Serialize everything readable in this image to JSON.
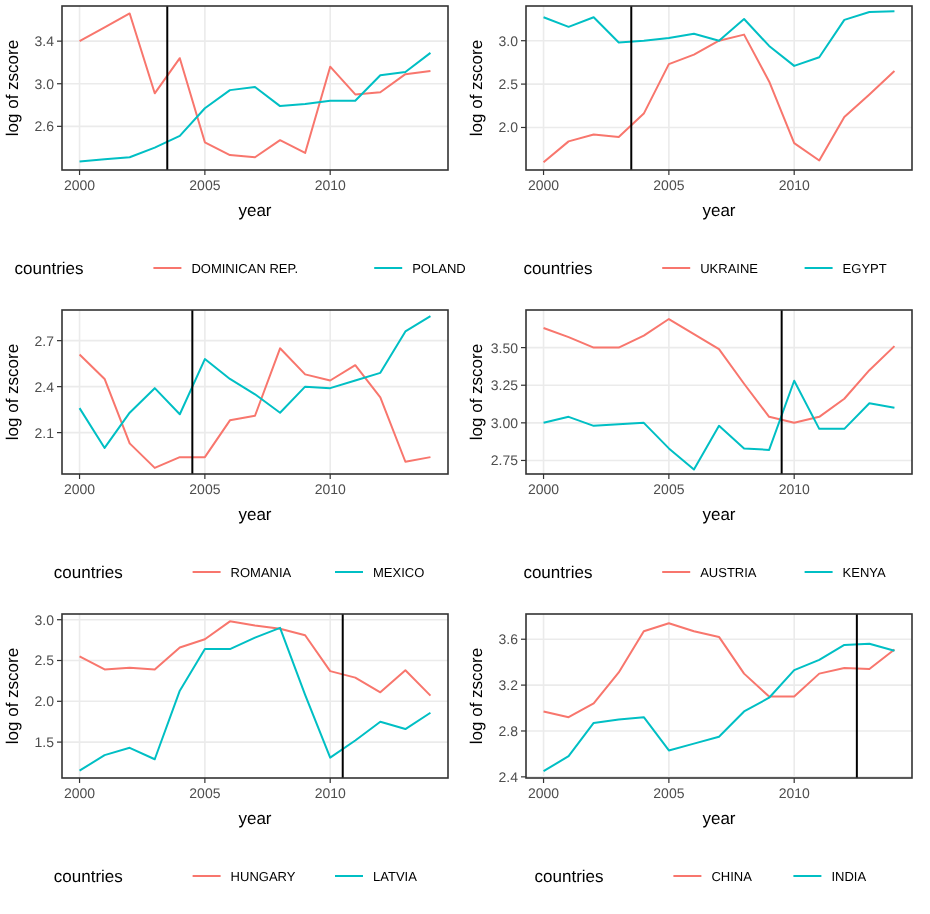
{
  "chart_data": [
    {
      "type": "line",
      "xlabel": "year",
      "ylabel": "log of zscore",
      "legend_title": "countries",
      "legend": "bottom",
      "grid": true,
      "x": [
        2000,
        2001,
        2002,
        2003,
        2004,
        2005,
        2006,
        2007,
        2008,
        2009,
        2010,
        2011,
        2012,
        2013,
        2014
      ],
      "xlim": [
        1999.3,
        2014.7
      ],
      "xticks": [
        2000,
        2005,
        2010
      ],
      "ylim": [
        2.19,
        3.73
      ],
      "yticks": [
        2.6,
        {
          "value": 3.0,
          "label": "3.0"
        },
        3.4
      ],
      "ref_lines": [
        {
          "axis": "x",
          "value": 2003.5,
          "color": "#000000"
        }
      ],
      "series": [
        {
          "name": "DOMINICAN REP.",
          "color": "#f8766d",
          "values": [
            3.4,
            3.53,
            3.66,
            2.91,
            3.24,
            2.45,
            2.33,
            2.31,
            2.47,
            2.35,
            3.16,
            2.9,
            2.92,
            3.09,
            3.12
          ]
        },
        {
          "name": "POLAND",
          "color": "#00bfc4",
          "values": [
            2.27,
            2.29,
            2.31,
            2.4,
            2.51,
            2.77,
            2.94,
            2.97,
            2.79,
            2.81,
            2.84,
            2.84,
            3.08,
            3.11,
            3.29
          ]
        }
      ]
    },
    {
      "type": "line",
      "xlabel": "year",
      "ylabel": "log of zscore",
      "legend_title": "countries",
      "legend": "bottom",
      "grid": true,
      "x": [
        2000,
        2001,
        2002,
        2003,
        2004,
        2005,
        2006,
        2007,
        2008,
        2009,
        2010,
        2011,
        2012,
        2013,
        2014
      ],
      "xlim": [
        1999.3,
        2014.7
      ],
      "xticks": [
        2000,
        2005,
        2010
      ],
      "ylim": [
        1.51,
        3.4
      ],
      "yticks": [
        {
          "value": 2.0,
          "label": "2.0"
        },
        2.5,
        {
          "value": 3.0,
          "label": "3.0"
        }
      ],
      "ref_lines": [
        {
          "axis": "x",
          "value": 2003.5,
          "color": "#000000"
        }
      ],
      "series": [
        {
          "name": "UKRAINE",
          "color": "#f8766d",
          "values": [
            1.6,
            1.84,
            1.92,
            1.89,
            2.16,
            2.73,
            2.84,
            3.0,
            3.07,
            2.53,
            1.82,
            1.62,
            2.12,
            2.38,
            2.65
          ]
        },
        {
          "name": "EGYPT",
          "color": "#00bfc4",
          "values": [
            3.27,
            3.16,
            3.27,
            2.98,
            3.0,
            3.03,
            3.08,
            3.0,
            3.25,
            2.94,
            2.71,
            2.81,
            3.24,
            3.33,
            3.34
          ]
        }
      ]
    },
    {
      "type": "line",
      "xlabel": "year",
      "ylabel": "log of zscore",
      "legend_title": "countries",
      "legend": "bottom",
      "grid": true,
      "x": [
        2000,
        2001,
        2002,
        2003,
        2004,
        2005,
        2006,
        2007,
        2008,
        2009,
        2010,
        2011,
        2012,
        2013,
        2014
      ],
      "xlim": [
        1999.3,
        2014.7
      ],
      "xticks": [
        2000,
        2005,
        2010
      ],
      "ylim": [
        1.83,
        2.9
      ],
      "yticks": [
        2.1,
        2.4,
        2.7
      ],
      "ref_lines": [
        {
          "axis": "x",
          "value": 2004.5,
          "color": "#000000"
        }
      ],
      "series": [
        {
          "name": "ROMANIA",
          "color": "#f8766d",
          "values": [
            2.61,
            2.45,
            2.03,
            1.87,
            1.94,
            1.94,
            2.18,
            2.21,
            2.65,
            2.48,
            2.44,
            2.54,
            2.33,
            1.91,
            1.94
          ]
        },
        {
          "name": "MEXICO",
          "color": "#00bfc4",
          "values": [
            2.26,
            2.0,
            2.23,
            2.39,
            2.22,
            2.58,
            2.45,
            2.35,
            2.23,
            2.4,
            2.39,
            2.44,
            2.49,
            2.76,
            2.86
          ]
        }
      ]
    },
    {
      "type": "line",
      "xlabel": "year",
      "ylabel": "log of zscore",
      "legend_title": "countries",
      "legend": "bottom",
      "grid": true,
      "x": [
        2000,
        2001,
        2002,
        2003,
        2004,
        2005,
        2006,
        2007,
        2008,
        2009,
        2010,
        2011,
        2012,
        2013,
        2014
      ],
      "xlim": [
        1999.3,
        2014.7
      ],
      "xticks": [
        2000,
        2005,
        2010
      ],
      "ylim": [
        2.66,
        3.75
      ],
      "yticks": [
        {
          "value": 2.75,
          "label": "2.75"
        },
        {
          "value": 3.0,
          "label": "3.00"
        },
        {
          "value": 3.25,
          "label": "3.25"
        },
        {
          "value": 3.5,
          "label": "3.50"
        }
      ],
      "ref_lines": [
        {
          "axis": "x",
          "value": 2009.5,
          "color": "#000000"
        }
      ],
      "series": [
        {
          "name": "AUSTRIA",
          "color": "#f8766d",
          "values": [
            3.63,
            3.57,
            3.5,
            3.5,
            3.58,
            3.69,
            3.59,
            3.49,
            3.26,
            3.04,
            3.0,
            3.04,
            3.16,
            3.35,
            3.51
          ]
        },
        {
          "name": "KENYA",
          "color": "#00bfc4",
          "values": [
            3.0,
            3.04,
            2.98,
            2.99,
            3.0,
            2.83,
            2.69,
            2.98,
            2.83,
            2.82,
            3.28,
            2.96,
            2.96,
            3.13,
            3.1
          ]
        }
      ]
    },
    {
      "type": "line",
      "xlabel": "year",
      "ylabel": "log of zscore",
      "legend_title": "countries",
      "legend": "bottom",
      "grid": true,
      "x": [
        2000,
        2001,
        2002,
        2003,
        2004,
        2005,
        2006,
        2007,
        2008,
        2009,
        2010,
        2011,
        2012,
        2013,
        2014
      ],
      "xlim": [
        1999.3,
        2014.7
      ],
      "xticks": [
        2000,
        2005,
        2010
      ],
      "ylim": [
        1.06,
        3.07
      ],
      "yticks": [
        1.5,
        {
          "value": 2.0,
          "label": "2.0"
        },
        2.5,
        {
          "value": 3.0,
          "label": "3.0"
        }
      ],
      "ref_lines": [
        {
          "axis": "x",
          "value": 2010.5,
          "color": "#000000"
        }
      ],
      "series": [
        {
          "name": "HUNGARY",
          "color": "#f8766d",
          "values": [
            2.55,
            2.39,
            2.41,
            2.39,
            2.66,
            2.76,
            2.98,
            2.93,
            2.89,
            2.81,
            2.37,
            2.29,
            2.11,
            2.38,
            2.07
          ]
        },
        {
          "name": "LATVIA",
          "color": "#00bfc4",
          "values": [
            1.15,
            1.34,
            1.43,
            1.29,
            2.13,
            2.64,
            2.64,
            2.78,
            2.9,
            2.08,
            1.31,
            1.52,
            1.75,
            1.66,
            1.86
          ]
        }
      ]
    },
    {
      "type": "line",
      "xlabel": "year",
      "ylabel": "log of zscore",
      "legend_title": "countries",
      "legend": "bottom",
      "grid": true,
      "x": [
        2000,
        2001,
        2002,
        2003,
        2004,
        2005,
        2006,
        2007,
        2008,
        2009,
        2010,
        2011,
        2012,
        2013,
        2014
      ],
      "xlim": [
        1999.3,
        2014.7
      ],
      "xticks": [
        2000,
        2005,
        2010
      ],
      "ylim": [
        2.39,
        3.82
      ],
      "yticks": [
        2.4,
        2.8,
        3.2,
        3.6
      ],
      "ref_lines": [
        {
          "axis": "x",
          "value": 2012.5,
          "color": "#000000"
        }
      ],
      "series": [
        {
          "name": "CHINA",
          "color": "#f8766d",
          "values": [
            2.97,
            2.92,
            3.04,
            3.31,
            3.67,
            3.74,
            3.67,
            3.62,
            3.3,
            3.1,
            3.1,
            3.3,
            3.35,
            3.34,
            3.51
          ]
        },
        {
          "name": "INDIA",
          "color": "#00bfc4",
          "values": [
            2.45,
            2.58,
            2.87,
            2.9,
            2.92,
            2.63,
            2.69,
            2.75,
            2.97,
            3.09,
            3.33,
            3.42,
            3.55,
            3.56,
            3.5
          ]
        }
      ]
    }
  ]
}
